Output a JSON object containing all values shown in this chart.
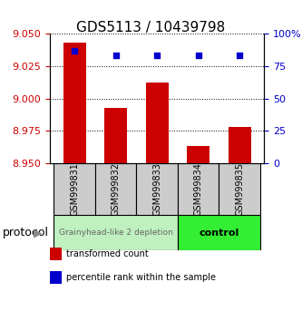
{
  "title": "GDS5113 / 10439798",
  "samples": [
    "GSM999831",
    "GSM999832",
    "GSM999833",
    "GSM999834",
    "GSM999835"
  ],
  "transformed_count": [
    9.043,
    8.993,
    9.012,
    8.963,
    8.978
  ],
  "percentile_rank": [
    87,
    83,
    83,
    83,
    83
  ],
  "ylim_left": [
    8.95,
    9.05
  ],
  "ylim_right": [
    0,
    100
  ],
  "yticks_left": [
    8.95,
    8.975,
    9.0,
    9.025,
    9.05
  ],
  "yticks_right": [
    0,
    25,
    50,
    75,
    100
  ],
  "ytick_labels_right": [
    "0",
    "25",
    "50",
    "75",
    "100%"
  ],
  "bar_color": "#cc0000",
  "scatter_color": "#0000cc",
  "bar_bottom": 8.95,
  "group0_label": "Grainyhead-like 2 depletion",
  "group0_color": "#c0f0c0",
  "group0_text_color": "#666666",
  "group0_samples": [
    0,
    1,
    2
  ],
  "group1_label": "control",
  "group1_color": "#33ee33",
  "group1_text_color": "#000000",
  "group1_samples": [
    3,
    4
  ],
  "protocol_label": "protocol",
  "legend_items": [
    {
      "color": "#cc0000",
      "label": "transformed count"
    },
    {
      "color": "#0000cc",
      "label": "percentile rank within the sample"
    }
  ],
  "grid_linestyle": "dotted",
  "background_color": "#ffffff",
  "cell_color": "#cccccc",
  "title_fontsize": 11,
  "axis_tick_fontsize": 8,
  "sample_label_fontsize": 7,
  "legend_fontsize": 7,
  "protocol_fontsize": 9
}
